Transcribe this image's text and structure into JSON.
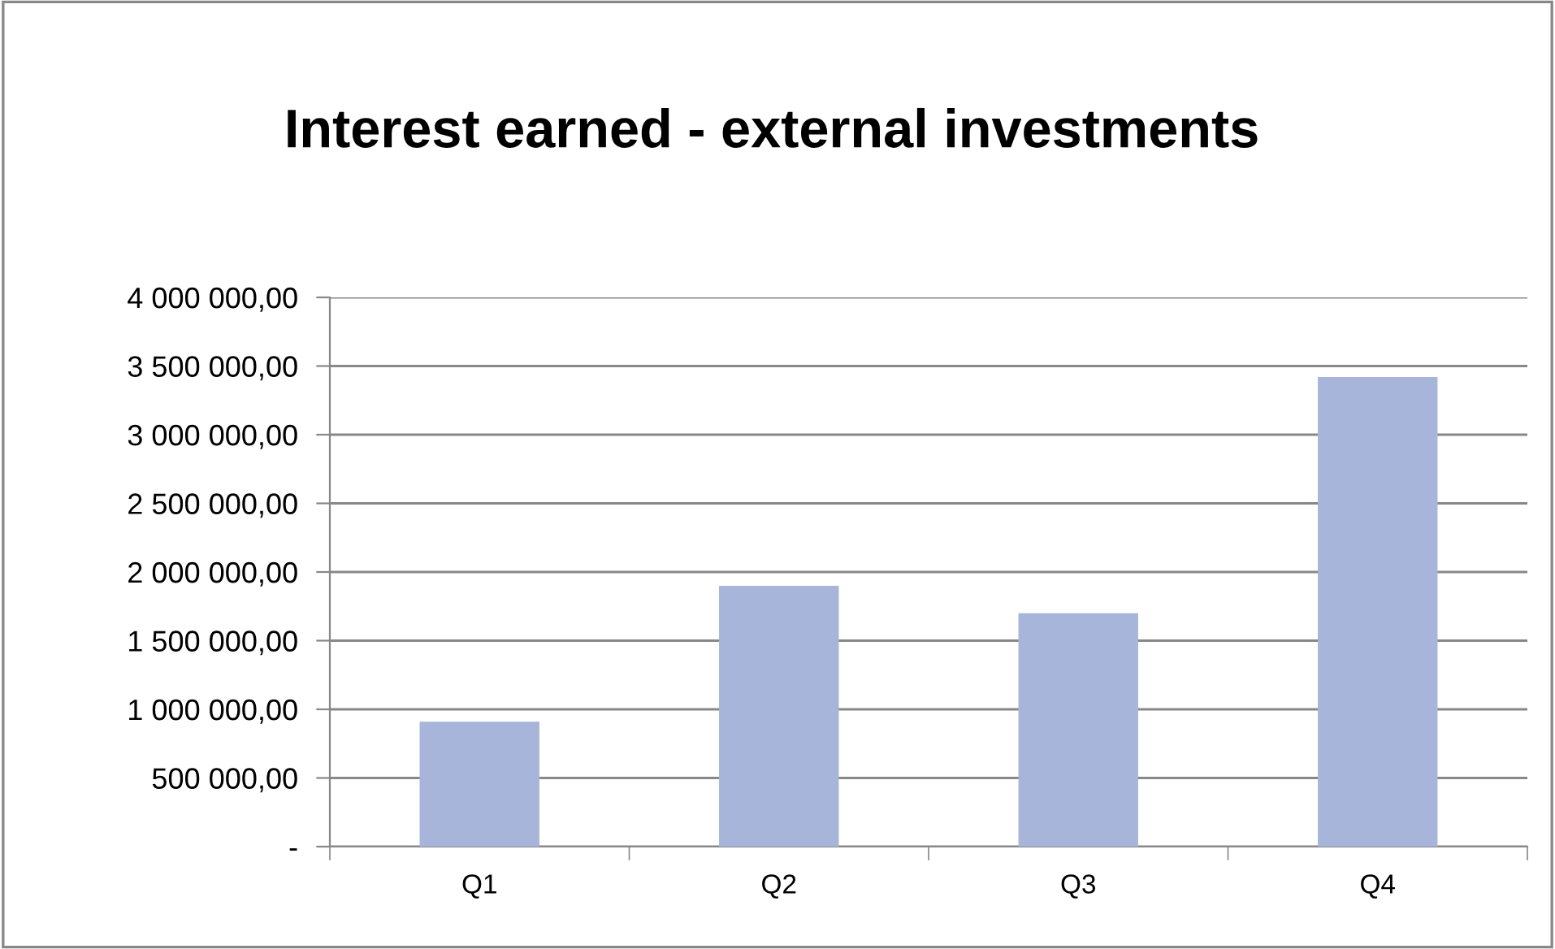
{
  "chart_data": {
    "type": "bar",
    "title": "Interest earned - external investments",
    "categories": [
      "Q1",
      "Q2",
      "Q3",
      "Q4"
    ],
    "values": [
      910000,
      1900000,
      1700000,
      3420000
    ],
    "color": "#a7b5da",
    "ylim": [
      0,
      4000000
    ],
    "yticks": [
      {
        "value": 0,
        "label": "-"
      },
      {
        "value": 500000,
        "label": "500 000,00"
      },
      {
        "value": 1000000,
        "label": "1 000 000,00"
      },
      {
        "value": 1500000,
        "label": "1 500 000,00"
      },
      {
        "value": 2000000,
        "label": "2 000 000,00"
      },
      {
        "value": 2500000,
        "label": "2 500 000,00"
      },
      {
        "value": 3000000,
        "label": "3 000 000,00"
      },
      {
        "value": 3500000,
        "label": "3 500 000,00"
      },
      {
        "value": 4000000,
        "label": "4 000 000,00"
      }
    ],
    "grid": "y",
    "legend": false
  }
}
